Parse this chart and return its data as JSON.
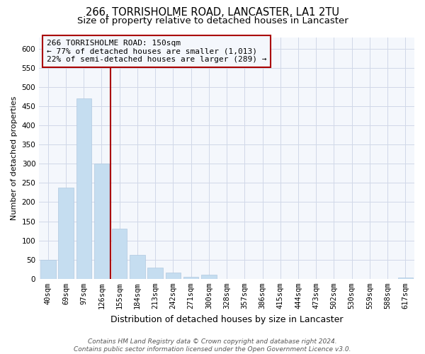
{
  "title": "266, TORRISHOLME ROAD, LANCASTER, LA1 2TU",
  "subtitle": "Size of property relative to detached houses in Lancaster",
  "xlabel": "Distribution of detached houses by size in Lancaster",
  "ylabel": "Number of detached properties",
  "bar_color": "#c5ddf0",
  "bar_edge_color": "#c5ddf0",
  "grid_color": "#d0d8e8",
  "background_color": "#ffffff",
  "plot_bg_color": "#f4f7fc",
  "categories": [
    "40sqm",
    "69sqm",
    "97sqm",
    "126sqm",
    "155sqm",
    "184sqm",
    "213sqm",
    "242sqm",
    "271sqm",
    "300sqm",
    "328sqm",
    "357sqm",
    "386sqm",
    "415sqm",
    "444sqm",
    "473sqm",
    "502sqm",
    "530sqm",
    "559sqm",
    "588sqm",
    "617sqm"
  ],
  "values": [
    50,
    238,
    471,
    300,
    130,
    62,
    29,
    16,
    6,
    10,
    0,
    0,
    0,
    0,
    0,
    0,
    0,
    0,
    0,
    0,
    3
  ],
  "ylim": [
    0,
    630
  ],
  "yticks": [
    0,
    50,
    100,
    150,
    200,
    250,
    300,
    350,
    400,
    450,
    500,
    550,
    600
  ],
  "vline_color": "#aa0000",
  "annotation_line1": "266 TORRISHOLME ROAD: 150sqm",
  "annotation_line2": "← 77% of detached houses are smaller (1,013)",
  "annotation_line3": "22% of semi-detached houses are larger (289) →",
  "footnote": "Contains HM Land Registry data © Crown copyright and database right 2024.\nContains public sector information licensed under the Open Government Licence v3.0.",
  "title_fontsize": 10.5,
  "subtitle_fontsize": 9.5,
  "xlabel_fontsize": 9,
  "ylabel_fontsize": 8,
  "tick_fontsize": 7.5,
  "annotation_fontsize": 8,
  "footnote_fontsize": 6.5
}
